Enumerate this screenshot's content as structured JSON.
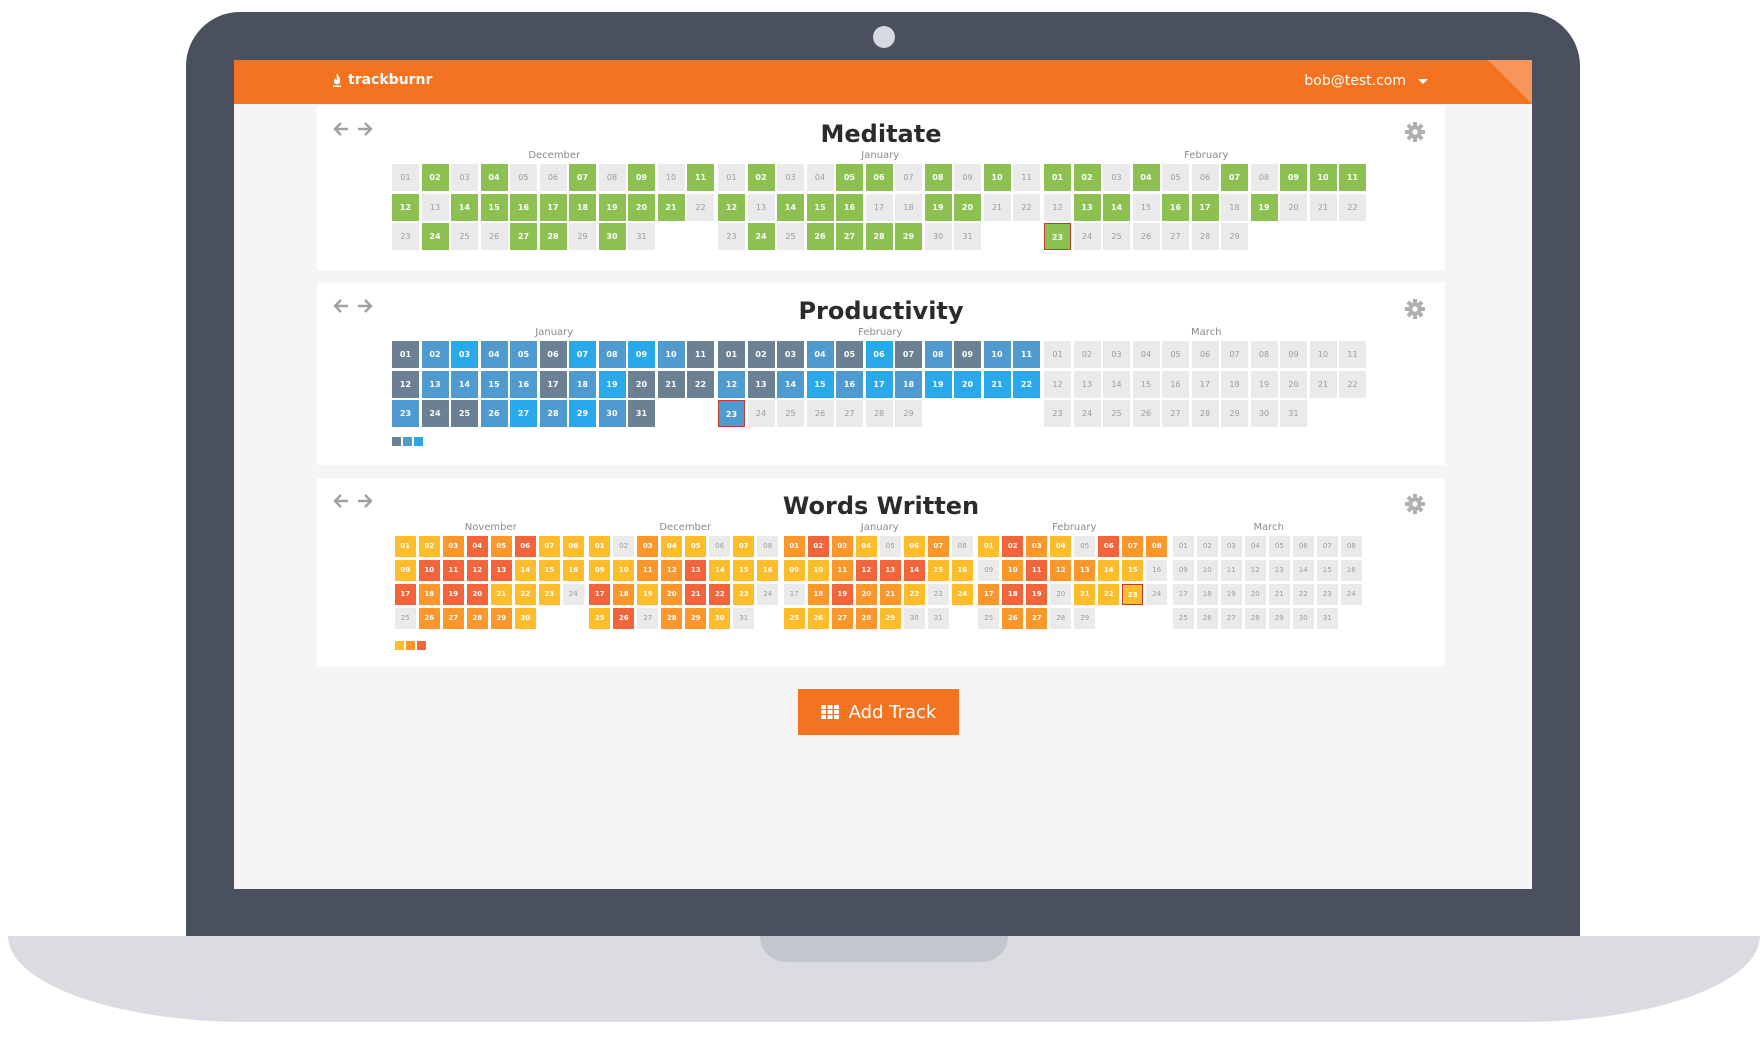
{
  "app": {
    "brand": "trackburnr",
    "user_email": "bob@test.com"
  },
  "add_track_label": "Add Track",
  "colors": {
    "topbar": "#f47321",
    "empty": "#eaeaea",
    "meditate": "#8cc152",
    "productivity": [
      "#6b8193",
      "#4f9bd0",
      "#29a9e9"
    ],
    "words": [
      "#fcbc2b",
      "#f9962c",
      "#f2653a"
    ],
    "today_border": "#c03a2b"
  },
  "tracks": [
    {
      "id": "meditate",
      "title": "Meditate",
      "months": [
        {
          "name": "December",
          "days": 31,
          "filled": [
            2,
            4,
            7,
            9,
            11,
            12,
            14,
            15,
            16,
            17,
            18,
            19,
            20,
            21,
            24,
            27,
            28,
            30
          ]
        },
        {
          "name": "January",
          "days": 31,
          "filled": [
            2,
            5,
            6,
            8,
            10,
            12,
            14,
            15,
            16,
            19,
            20,
            24,
            26,
            27,
            28,
            29
          ]
        },
        {
          "name": "February",
          "days": 29,
          "filled": [
            1,
            2,
            4,
            7,
            9,
            10,
            11,
            13,
            14,
            16,
            17,
            19,
            23
          ],
          "today": 23
        }
      ]
    },
    {
      "id": "productivity",
      "title": "Productivity",
      "months": [
        {
          "name": "January",
          "days": 31,
          "levels": {
            "1": 0,
            "2": 1,
            "3": 2,
            "4": 1,
            "5": 1,
            "6": 0,
            "7": 2,
            "8": 1,
            "9": 2,
            "10": 1,
            "11": 0,
            "12": 0,
            "13": 1,
            "14": 1,
            "15": 1,
            "16": 1,
            "17": 0,
            "18": 1,
            "19": 2,
            "20": 0,
            "21": 0,
            "22": 0,
            "23": 1,
            "24": 0,
            "25": 0,
            "26": 1,
            "27": 2,
            "28": 1,
            "29": 2,
            "30": 1,
            "31": 0
          }
        },
        {
          "name": "February",
          "days": 29,
          "levels": {
            "1": 0,
            "2": 0,
            "3": 0,
            "4": 1,
            "5": 0,
            "6": 2,
            "7": 0,
            "8": 1,
            "9": 0,
            "10": 1,
            "11": 1,
            "12": 1,
            "13": 0,
            "14": 1,
            "15": 2,
            "16": 1,
            "17": 2,
            "18": 1,
            "19": 2,
            "20": 2,
            "21": 2,
            "22": 2,
            "23": 1
          },
          "today": 23
        },
        {
          "name": "March",
          "days": 31,
          "levels": {}
        }
      ]
    },
    {
      "id": "words",
      "title": "Words Written",
      "months": [
        {
          "name": "November",
          "days": 30,
          "levels": {
            "1": 0,
            "2": 0,
            "3": 1,
            "4": 2,
            "5": 1,
            "6": 2,
            "7": 0,
            "8": 0,
            "9": 0,
            "10": 2,
            "11": 2,
            "12": 2,
            "13": 2,
            "14": 0,
            "15": 0,
            "16": 0,
            "17": 2,
            "18": 1,
            "19": 2,
            "20": 2,
            "21": 0,
            "22": 0,
            "23": 0,
            "26": 1,
            "27": 1,
            "28": 1,
            "29": 1,
            "30": 0
          }
        },
        {
          "name": "December",
          "days": 31,
          "levels": {
            "1": 0,
            "3": 1,
            "4": 0,
            "5": 0,
            "7": 0,
            "9": 0,
            "10": 0,
            "11": 1,
            "12": 1,
            "13": 2,
            "14": 0,
            "15": 0,
            "16": 0,
            "17": 2,
            "18": 1,
            "19": 0,
            "20": 1,
            "21": 2,
            "22": 2,
            "23": 0,
            "25": 0,
            "26": 2,
            "28": 1,
            "29": 1,
            "30": 0
          }
        },
        {
          "name": "January",
          "days": 31,
          "levels": {
            "1": 1,
            "2": 2,
            "3": 1,
            "4": 0,
            "6": 0,
            "7": 1,
            "9": 0,
            "10": 0,
            "11": 1,
            "12": 2,
            "13": 2,
            "14": 2,
            "15": 0,
            "16": 0,
            "18": 1,
            "19": 2,
            "20": 1,
            "21": 1,
            "22": 0,
            "24": 0,
            "25": 0,
            "26": 0,
            "27": 1,
            "28": 1,
            "29": 0
          }
        },
        {
          "name": "February",
          "days": 29,
          "levels": {
            "1": 0,
            "2": 2,
            "3": 1,
            "4": 0,
            "6": 2,
            "7": 1,
            "8": 1,
            "10": 1,
            "11": 2,
            "12": 1,
            "13": 1,
            "14": 0,
            "15": 0,
            "17": 1,
            "18": 2,
            "19": 2,
            "21": 0,
            "22": 0,
            "23": 0,
            "26": 1,
            "27": 1
          },
          "today": 23
        },
        {
          "name": "March",
          "days": 31,
          "levels": {}
        }
      ]
    }
  ]
}
